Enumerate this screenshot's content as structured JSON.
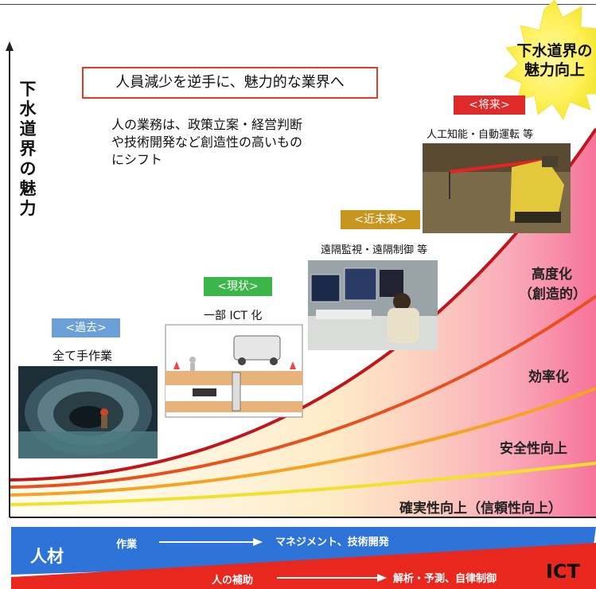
{
  "y_axis_label": "下水道界の魅力",
  "headline": "人員減少を逆手に、魅力的な業界へ",
  "description": [
    "人の業務は、政策立案・経営判断",
    "や技術開発など創造性の高いもの",
    "にシフト"
  ],
  "future_star": [
    "下水道界の",
    "魅力向上"
  ],
  "stages": [
    {
      "badge": "<過去>",
      "caption": "全て手作業",
      "color": "#6a9fd8"
    },
    {
      "badge": "<現状>",
      "caption": "一部 ICT 化",
      "color": "#3cb64a"
    },
    {
      "badge": "<近未来>",
      "caption": "遠隔監視・遠隔制御 等",
      "color": "#c8961e"
    },
    {
      "badge": "<将来>",
      "caption": "人工知能・自動運転 等",
      "color": "#e02a2a"
    }
  ],
  "levels": [
    {
      "line1": "高度化",
      "line2": "（創造的）",
      "color": "#c0151b"
    },
    {
      "line1": "効率化",
      "color": "#e8501e"
    },
    {
      "line1": "安全性向上",
      "color": "#f5a320"
    },
    {
      "line1": "確実性向上（信頼性向上）",
      "color": "#f2e02a"
    }
  ],
  "human_band": {
    "label": "人材",
    "from": "作業",
    "to": "マネジメント、技術開発",
    "color": "#2e74d8"
  },
  "ict_band": {
    "label": "ICT",
    "from": "人の補助",
    "to": "解析・予測、自律制御",
    "color": "#e8281e"
  }
}
